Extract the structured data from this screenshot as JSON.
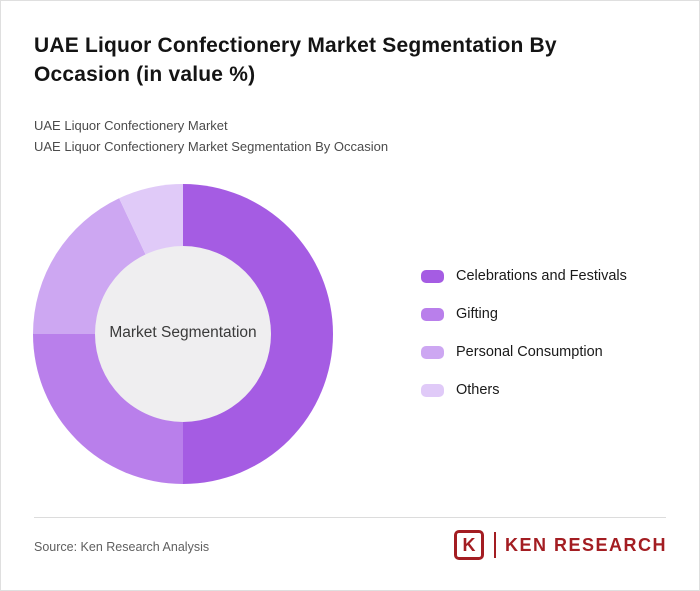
{
  "page": {
    "title": "UAE Liquor Confectionery Market Segmentation By Occasion (in value %)",
    "subtitle_line1": "UAE Liquor Confectionery Market",
    "subtitle_line2": "UAE Liquor Confectionery Market Segmentation By Occasion"
  },
  "chart_data": {
    "type": "pie",
    "donut": true,
    "title": "UAE Liquor Confectionery Market Segmentation By Occasion (in value %)",
    "center_label": "Market Segmentation",
    "legend_position": "right",
    "categories": [
      "Celebrations and Festivals",
      "Gifting",
      "Personal Consumption",
      "Others"
    ],
    "values": [
      50,
      25,
      18,
      7
    ],
    "colors": [
      "#A55CE3",
      "#B97FEB",
      "#CDA7F2",
      "#E0CAF8"
    ],
    "center_fill": "#EFEEF0"
  },
  "footer": {
    "source": "Source: Ken Research Analysis",
    "logo_initial": "K",
    "logo_text": "KEN RESEARCH",
    "logo_color": "#A31D22"
  }
}
